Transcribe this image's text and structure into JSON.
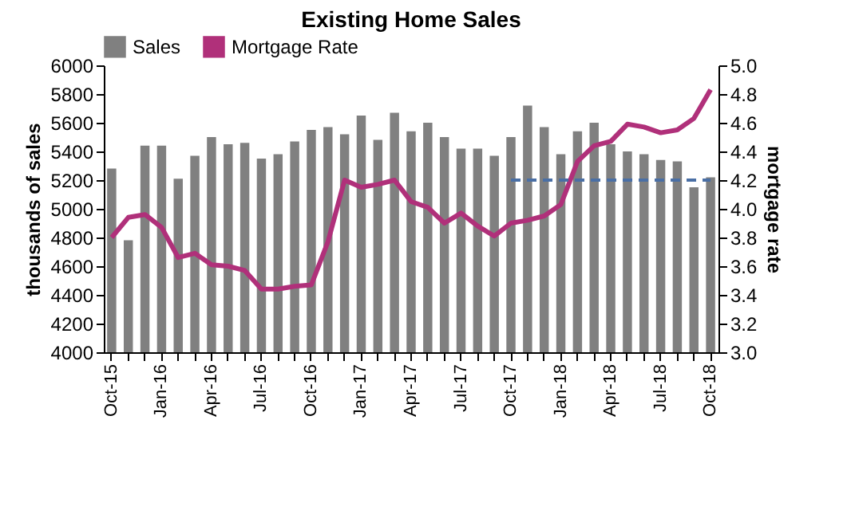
{
  "chart_data": {
    "type": "bar",
    "title": "Existing Home Sales",
    "ylabel": "thousands of sales",
    "y2label": "mortgage rate",
    "categories": [
      "Oct-15",
      null,
      null,
      "Jan-16",
      null,
      null,
      "Apr-16",
      null,
      null,
      "Jul-16",
      null,
      null,
      "Oct-16",
      null,
      null,
      "Jan-17",
      null,
      null,
      "Apr-17",
      null,
      null,
      "Jul-17",
      null,
      null,
      "Oct-17",
      null,
      null,
      "Jan-18",
      null,
      null,
      "Apr-18",
      null,
      null,
      "Jul-18",
      null,
      null,
      "Oct-18"
    ],
    "series": [
      {
        "name": "Sales",
        "color": "#808080",
        "values": [
          5280,
          4780,
          5440,
          5440,
          5210,
          5370,
          5500,
          5450,
          5460,
          5350,
          5380,
          5470,
          5550,
          5570,
          5520,
          5650,
          5480,
          5670,
          5540,
          5600,
          5500,
          5420,
          5420,
          5370,
          5500,
          5720,
          5570,
          5380,
          5540,
          5600,
          5450,
          5400,
          5380,
          5340,
          5330,
          5150,
          5220
        ]
      },
      {
        "name": "Mortgage Rate",
        "type": "line",
        "axis": "y2",
        "color": "#b0307a",
        "values": [
          3.8,
          3.94,
          3.96,
          3.87,
          3.66,
          3.69,
          3.61,
          3.6,
          3.57,
          3.44,
          3.44,
          3.46,
          3.47,
          3.77,
          4.2,
          4.15,
          4.17,
          4.2,
          4.05,
          4.01,
          3.9,
          3.97,
          3.88,
          3.81,
          3.9,
          3.92,
          3.95,
          4.03,
          4.33,
          4.44,
          4.47,
          4.59,
          4.57,
          4.53,
          4.55,
          4.63,
          4.83
        ]
      },
      {
        "type": "line",
        "axis": "y2",
        "color": "#4a6fa5",
        "line_style": "dashed",
        "values": [
          null,
          null,
          null,
          null,
          null,
          null,
          null,
          null,
          null,
          null,
          null,
          null,
          null,
          null,
          null,
          null,
          null,
          null,
          null,
          null,
          null,
          null,
          null,
          null,
          4.2,
          4.2,
          4.2,
          4.2,
          4.2,
          4.2,
          4.2,
          4.2,
          4.2,
          4.2,
          4.2,
          4.2,
          4.2
        ]
      }
    ],
    "ylim": [
      4000,
      6000
    ],
    "yticks": [
      4000,
      4200,
      4400,
      4600,
      4800,
      5000,
      5200,
      5400,
      5600,
      5800,
      6000
    ],
    "y2lim": [
      3.0,
      5.0
    ],
    "y2ticks": [
      {
        "value": 3.0,
        "label": "3.0"
      },
      {
        "value": 3.2,
        "label": "3.2"
      },
      {
        "value": 3.4,
        "label": "3.4"
      },
      {
        "value": 3.6,
        "label": "3.6"
      },
      {
        "value": 3.8,
        "label": "3.8"
      },
      {
        "value": 4.0,
        "label": "4.0"
      },
      {
        "value": 4.2,
        "label": "4.2"
      },
      {
        "value": 4.4,
        "label": "4.4"
      },
      {
        "value": 4.6,
        "label": "4.6"
      },
      {
        "value": 4.8,
        "label": "4.8"
      },
      {
        "value": 5.0,
        "label": "5.0"
      }
    ],
    "legend": "top",
    "grid": false
  }
}
